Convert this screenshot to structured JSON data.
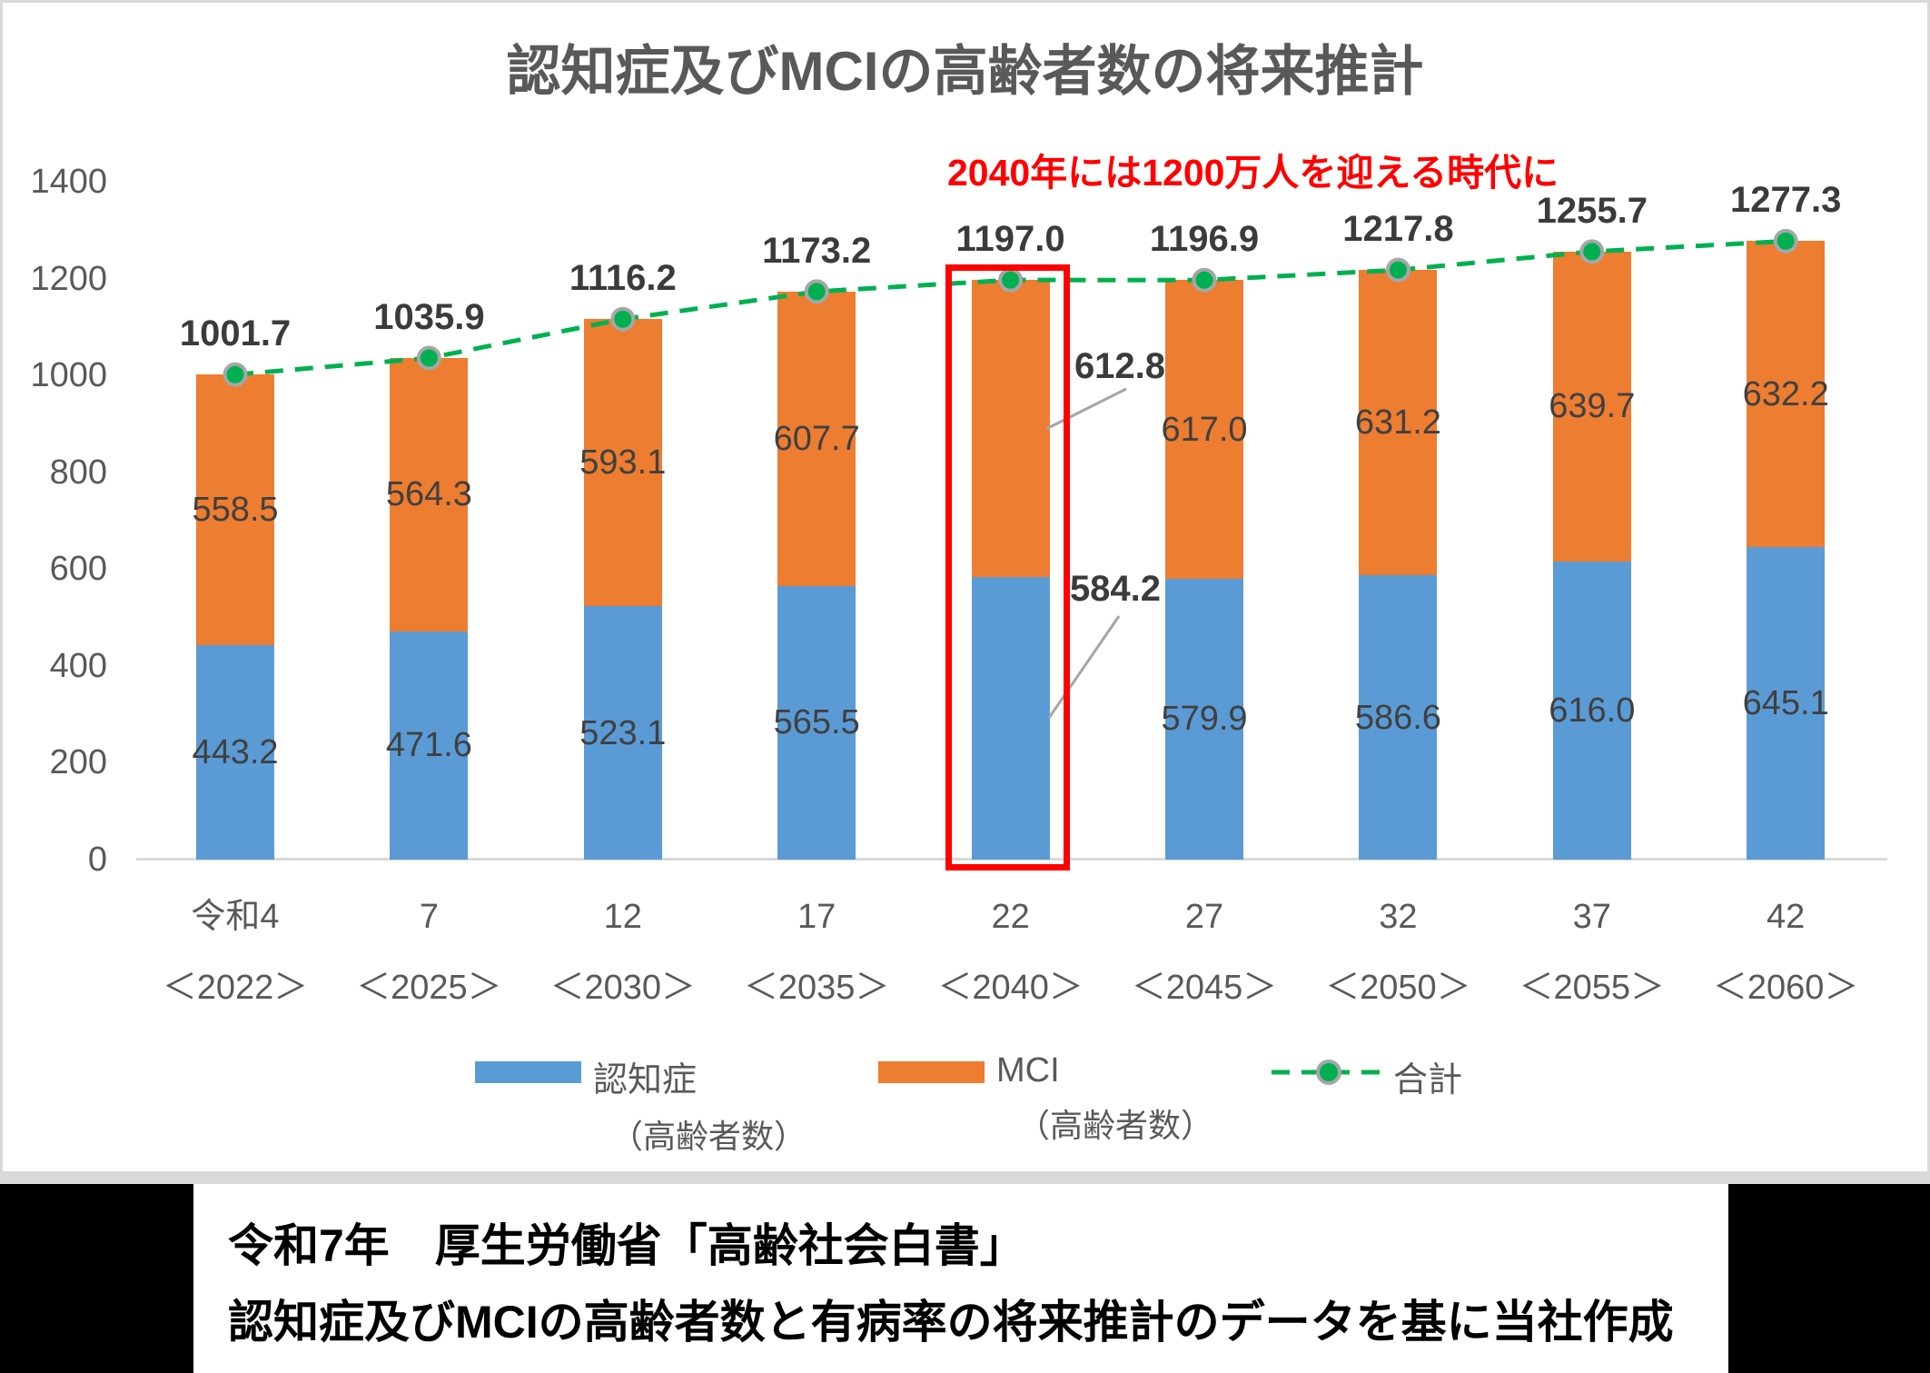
{
  "page": {
    "title": "認知症及びMCIの高齢者数の将来推計"
  },
  "annotation": {
    "text": "2040年には1200万人を迎える時代に",
    "color": "#ff0000"
  },
  "chart_data": {
    "type": "bar",
    "subtype": "stacked-column-with-total-line",
    "title": "認知症及びMCIの高齢者数の将来推計",
    "categories_era": [
      "令和4",
      "7",
      "12",
      "17",
      "22",
      "27",
      "32",
      "37",
      "42"
    ],
    "categories_year": [
      "＜2022＞",
      "＜2025＞",
      "＜2030＞",
      "＜2035＞",
      "＜2040＞",
      "＜2045＞",
      "＜2050＞",
      "＜2055＞",
      "＜2060＞"
    ],
    "series": [
      {
        "name": "認知症",
        "name_sub": "（高齢者数）",
        "color": "#5B9BD5",
        "values": [
          443.2,
          471.6,
          523.1,
          565.5,
          584.2,
          579.9,
          586.6,
          616.0,
          645.1
        ]
      },
      {
        "name": "MCI",
        "name_sub": "（高齢者数）",
        "color": "#ED7D31",
        "values": [
          558.5,
          564.3,
          593.1,
          607.7,
          612.8,
          617.0,
          631.2,
          639.7,
          632.2
        ]
      }
    ],
    "line_series": {
      "name": "合計",
      "color": "#00B050",
      "marker_ring_color": "#A6A6A6",
      "values": [
        1001.7,
        1035.9,
        1116.2,
        1173.2,
        1197.0,
        1196.9,
        1217.8,
        1255.7,
        1277.3
      ]
    },
    "ylim": [
      0,
      1400
    ],
    "yticks": [
      0,
      200,
      400,
      600,
      800,
      1000,
      1200,
      1400
    ],
    "grid": false,
    "legend_position": "bottom",
    "highlight": {
      "index": 4,
      "box_color": "#FE0000",
      "callouts": [
        {
          "text": "612.8",
          "series": "MCI"
        },
        {
          "text": "584.2",
          "series": "認知症"
        }
      ]
    }
  },
  "footer": {
    "line1": "令和7年　厚生労働省「高齢社会白書」",
    "line2": "認知症及びMCIの高齢者数と有病率の将来推計のデータを基に当社作成"
  }
}
